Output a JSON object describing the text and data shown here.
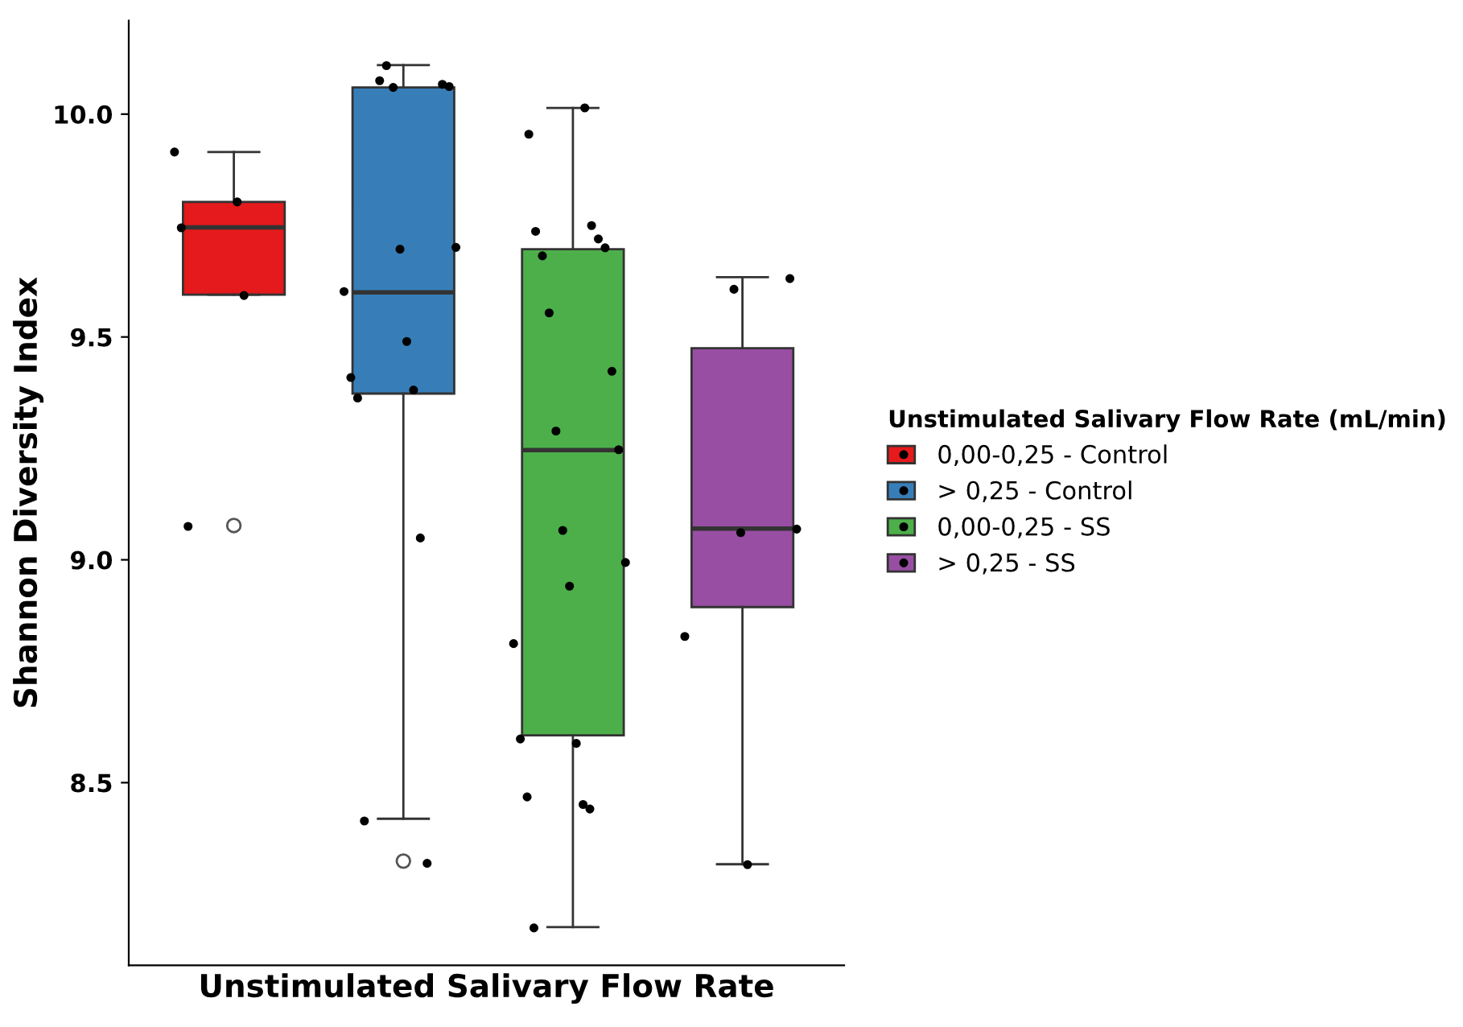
{
  "chart_data": {
    "type": "box",
    "xlabel": "Unstimulated Salivary Flow Rate",
    "ylabel": "Shannon Diversity Index",
    "legend_title": "Unstimulated Salivary Flow Rate (mL/min)",
    "legend": "right",
    "grid": false,
    "categories": [
      null,
      null,
      null,
      null
    ],
    "ylim": [
      8.09,
      10.21
    ],
    "yticks": [
      8.5,
      {
        "value": 9.0,
        "label": "9.0"
      },
      9.5,
      {
        "value": 10.0,
        "label": "10.0"
      }
    ],
    "series": [
      {
        "name": "0,00-0,25 - Control",
        "color": "#e41a1c",
        "boxes": [
          {
            "low": 9.595,
            "q1": 9.595,
            "median": 9.746,
            "q3": 9.803,
            "high": 9.915,
            "outliers": [
              9.077
            ]
          },
          null,
          null,
          null
        ]
      },
      {
        "name": "> 0,25 - Control",
        "color": "#377eb8",
        "boxes": [
          null,
          {
            "low": 8.419,
            "q1": 9.373,
            "median": 9.6,
            "q3": 10.06,
            "high": 10.11,
            "outliers": [
              8.324
            ]
          },
          null,
          null
        ]
      },
      {
        "name": "0,00-0,25 - SS",
        "color": "#4daf4a",
        "boxes": [
          null,
          null,
          {
            "low": 8.176,
            "q1": 8.606,
            "median": 9.246,
            "q3": 9.697,
            "high": 10.014
          },
          null
        ]
      },
      {
        "name": "> 0,25 - SS",
        "color": "#984ea3",
        "boxes": [
          null,
          null,
          null,
          {
            "low": 8.317,
            "q1": 8.894,
            "median": 9.07,
            "q3": 9.475,
            "high": 9.634
          }
        ]
      },
      {
        "type": "scatter",
        "color": "#000000",
        "values": [
          9.915,
          10.075,
          10.014,
          9.631
        ]
      },
      {
        "type": "scatter",
        "color": "#000000",
        "values": [
          9.803,
          10.067,
          9.955,
          9.607
        ]
      },
      {
        "type": "scatter",
        "color": "#000000",
        "values": [
          9.745,
          10.109,
          9.75,
          9.069
        ]
      },
      {
        "type": "scatter",
        "color": "#000000",
        "values": [
          9.593,
          10.062,
          9.737,
          9.061
        ]
      },
      {
        "type": "scatter",
        "color": "#000000",
        "values": [
          9.075,
          10.06,
          9.72,
          8.828
        ]
      },
      {
        "type": "scatter",
        "color": "#000000",
        "values": [
          null,
          9.701,
          9.682,
          8.316
        ]
      },
      {
        "type": "scatter",
        "color": "#000000",
        "values": [
          null,
          9.697,
          9.7,
          null
        ]
      },
      {
        "type": "scatter",
        "color": "#000000",
        "values": [
          null,
          9.602,
          9.554,
          null
        ]
      },
      {
        "type": "scatter",
        "color": "#000000",
        "values": [
          null,
          9.49,
          9.423,
          null
        ]
      },
      {
        "type": "scatter",
        "color": "#000000",
        "values": [
          null,
          9.409,
          9.289,
          null
        ]
      },
      {
        "type": "scatter",
        "color": "#000000",
        "values": [
          null,
          9.381,
          9.247,
          null
        ]
      },
      {
        "type": "scatter",
        "color": "#000000",
        "values": [
          null,
          9.363,
          9.066,
          null
        ]
      },
      {
        "type": "scatter",
        "color": "#000000",
        "values": [
          null,
          9.049,
          8.994,
          null
        ]
      },
      {
        "type": "scatter",
        "color": "#000000",
        "values": [
          null,
          8.414,
          8.941,
          null
        ]
      },
      {
        "type": "scatter",
        "color": "#000000",
        "values": [
          null,
          8.319,
          8.812,
          null
        ]
      },
      {
        "type": "scatter",
        "color": "#000000",
        "values": [
          null,
          null,
          8.588,
          null
        ]
      },
      {
        "type": "scatter",
        "color": "#000000",
        "values": [
          null,
          null,
          8.598,
          null
        ]
      },
      {
        "type": "scatter",
        "color": "#000000",
        "values": [
          null,
          null,
          8.451,
          null
        ]
      },
      {
        "type": "scatter",
        "color": "#000000",
        "values": [
          null,
          null,
          8.468,
          null
        ]
      },
      {
        "type": "scatter",
        "color": "#000000",
        "values": [
          null,
          null,
          8.441,
          null
        ]
      },
      {
        "type": "scatter",
        "color": "#000000",
        "values": [
          null,
          null,
          8.174,
          null
        ]
      }
    ]
  }
}
